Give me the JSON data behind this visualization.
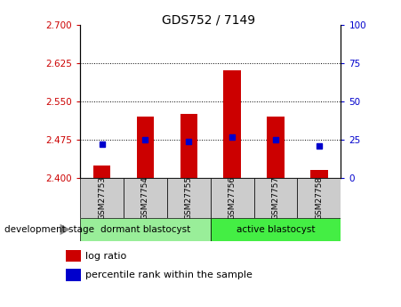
{
  "title": "GDS752 / 7149",
  "samples": [
    "GSM27753",
    "GSM27754",
    "GSM27755",
    "GSM27756",
    "GSM27757",
    "GSM27758"
  ],
  "log_ratio_values": [
    2.425,
    2.52,
    2.525,
    2.61,
    2.52,
    2.415
  ],
  "log_ratio_base": 2.4,
  "percentile_ranks": [
    22,
    25,
    24,
    27,
    25,
    21
  ],
  "ylim_left": [
    2.4,
    2.7
  ],
  "ylim_right": [
    0,
    100
  ],
  "yticks_left": [
    2.4,
    2.475,
    2.55,
    2.625,
    2.7
  ],
  "yticks_right": [
    0,
    25,
    50,
    75,
    100
  ],
  "hline_values": [
    2.475,
    2.55,
    2.625
  ],
  "bar_color": "#cc0000",
  "dot_color": "#0000cc",
  "bar_width": 0.4,
  "group_colors": {
    "dormant blastocyst": "#99ee99",
    "active blastocyst": "#44ee44"
  },
  "tick_color_left": "#cc0000",
  "tick_color_right": "#0000cc",
  "plot_bg_color": "#ffffff"
}
